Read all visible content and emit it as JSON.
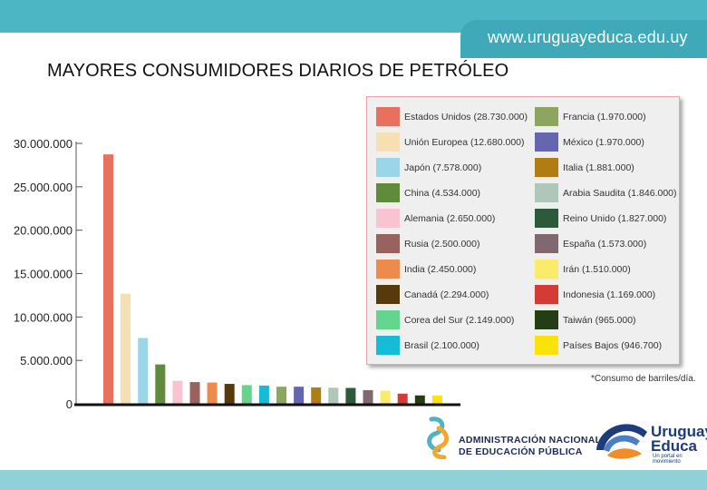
{
  "header": {
    "url": "www.uruguayeduca.edu.uy"
  },
  "title": "MAYORES CONSUMIDORES DIARIOS DE PETRÓLEO",
  "footnote": "*Consumo de barriles/día.",
  "logos": {
    "anep_line1": "ADMINISTRACIÓN NACIONAL",
    "anep_line2": "DE EDUCACIÓN PÚBLICA",
    "ue_line1": "Uruguay",
    "ue_line2": "Educa",
    "ue_tagline": "Un portal en movimiento"
  },
  "chart_data": {
    "type": "bar",
    "title": "",
    "xlabel": "",
    "ylabel": "",
    "ylim": [
      0,
      30000000
    ],
    "ticks": [
      "0",
      "5.000.000",
      "10.000.000",
      "15.000.000",
      "20.000.000",
      "25.000.000",
      "30.000.000"
    ],
    "tick_values": [
      0,
      5000000,
      10000000,
      15000000,
      20000000,
      25000000,
      30000000
    ],
    "legend_position": "right",
    "categories": [
      "Estados Unidos",
      "Unión Europea",
      "Japón",
      "China",
      "Alemania",
      "Rusia",
      "India",
      "Canadá",
      "Corea del Sur",
      "Brasil",
      "Francia",
      "México",
      "Italia",
      "Arabia Saudita",
      "Reino Unido",
      "España",
      "Irán",
      "Indonesia",
      "Taiwán",
      "Países Bajos"
    ],
    "values": [
      28730000,
      12680000,
      7578000,
      4534000,
      2650000,
      2500000,
      2450000,
      2294000,
      2149000,
      2100000,
      1970000,
      1970000,
      1881000,
      1846000,
      1827000,
      1573000,
      1510000,
      1169000,
      965000,
      946700
    ],
    "colors": [
      "#e8705e",
      "#f6dfb3",
      "#9ad5e8",
      "#5f8b3a",
      "#f8c4d2",
      "#98625e",
      "#ee8a4c",
      "#563a0c",
      "#64d58f",
      "#16bcd6",
      "#8ca65f",
      "#6466b0",
      "#b17d13",
      "#aec7b8",
      "#2d5a3a",
      "#7f6870",
      "#fbeb6c",
      "#d43b36",
      "#253d14",
      "#fbe20a"
    ],
    "legend_labels": [
      "Estados Unidos  (28.730.000)",
      "Unión Europea  (12.680.000)",
      "Japón  (7.578.000)",
      "China  (4.534.000)",
      "Alemania  (2.650.000)",
      "Rusia  (2.500.000)",
      "India  (2.450.000)",
      "Canadá  (2.294.000)",
      "Corea del Sur  (2.149.000)",
      "Brasil  (2.100.000)",
      "Francia  (1.970.000)",
      "México  (1.970.000)",
      "Italia  (1.881.000)",
      "Arabia Saudita  (1.846.000)",
      "Reino Unido  (1.827.000)",
      "España  (1.573.000)",
      "Irán  (1.510.000)",
      "Indonesia  (1.169.000)",
      "Taiwán  (965.000)",
      "Países Bajos  (946.700)"
    ]
  }
}
